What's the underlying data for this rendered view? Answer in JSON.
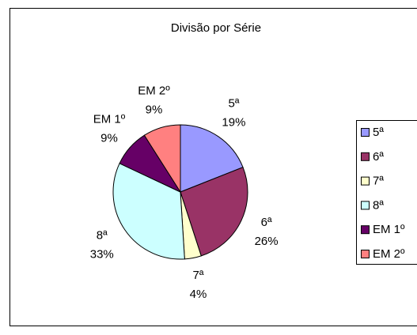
{
  "chart_data": {
    "type": "pie",
    "title": "Divisão por Série",
    "categories": [
      "5ª",
      "6ª",
      "7ª",
      "8ª",
      "EM 1º",
      "EM 2º"
    ],
    "values": [
      19,
      26,
      4,
      33,
      9,
      9
    ],
    "value_labels": [
      "19%",
      "26%",
      "4%",
      "33%",
      "9%",
      "9%"
    ],
    "colors": [
      "#9999ff",
      "#993366",
      "#ffffcc",
      "#ccffff",
      "#660066",
      "#ff8080"
    ],
    "legend": "right"
  }
}
